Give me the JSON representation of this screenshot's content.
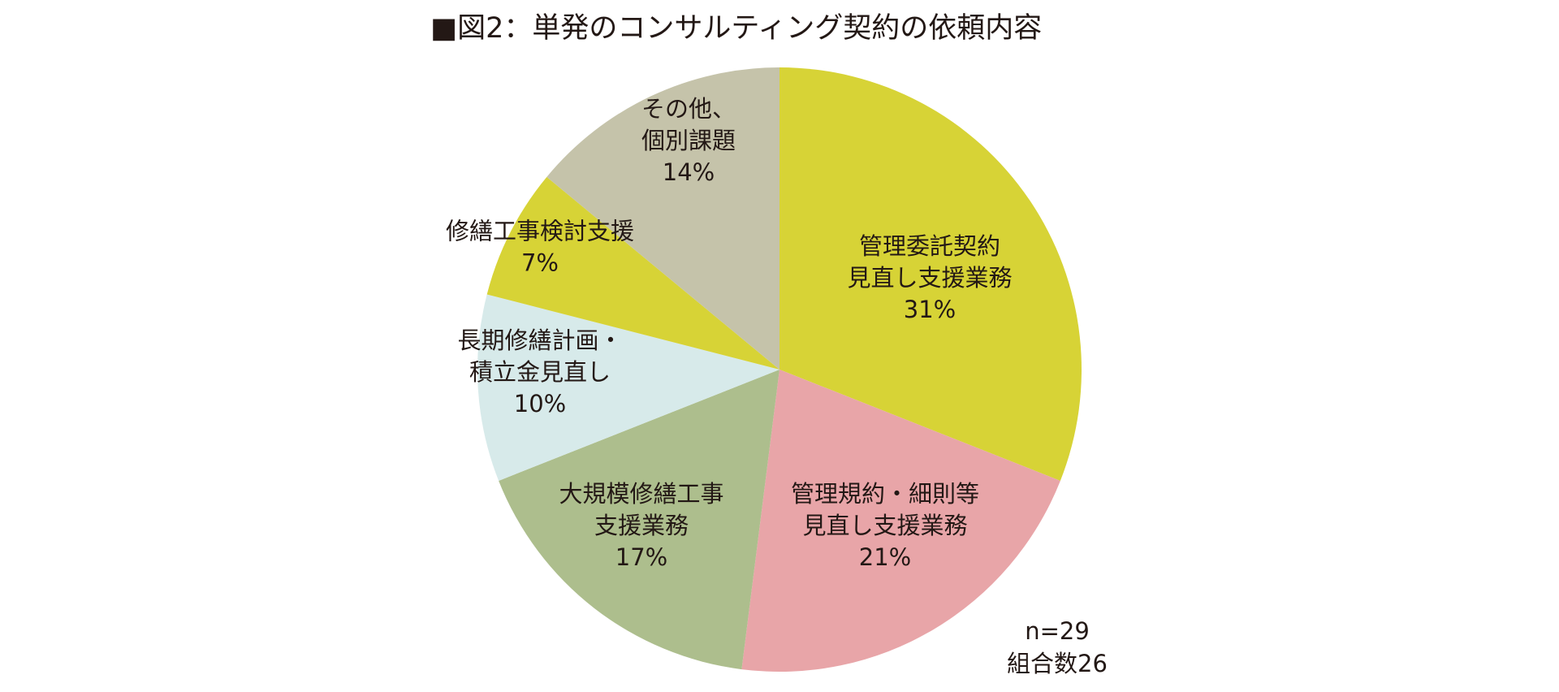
{
  "chart_data": {
    "type": "pie",
    "title": "■図2：単発のコンサルティング契約の依頼内容",
    "start_angle_deg": 0,
    "direction": "clockwise",
    "slices": [
      {
        "label_lines": [
          "管理委託契約",
          "見直し支援業務"
        ],
        "percent_label": "31%",
        "value": 31,
        "color": "#d7d336"
      },
      {
        "label_lines": [
          "管理規約・細則等",
          "見直し支援業務"
        ],
        "percent_label": "21%",
        "value": 21,
        "color": "#e8a5a8"
      },
      {
        "label_lines": [
          "大規模修繕工事",
          "支援業務"
        ],
        "percent_label": "17%",
        "value": 17,
        "color": "#adbe8d"
      },
      {
        "label_lines": [
          "長期修繕計画・",
          "積立金見直し"
        ],
        "percent_label": "10%",
        "value": 10,
        "color": "#d7eaea"
      },
      {
        "label_lines": [
          "修繕工事検討支援"
        ],
        "percent_label": "7%",
        "value": 7,
        "color": "#d7d336"
      },
      {
        "label_lines": [
          "その他、",
          "個別課題"
        ],
        "percent_label": "14%",
        "value": 14,
        "color": "#c5c3aa"
      }
    ],
    "notes": [
      "n=29",
      "組合数26"
    ]
  }
}
